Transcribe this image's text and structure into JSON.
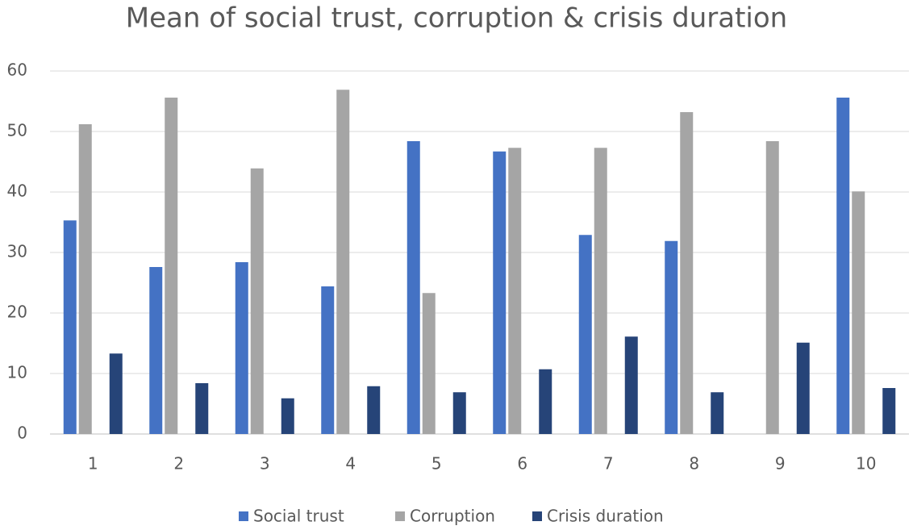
{
  "chart_data": {
    "type": "bar",
    "title": "Mean of social trust, corruption & crisis duration",
    "categories": [
      "1",
      "2",
      "3",
      "4",
      "5",
      "6",
      "7",
      "8",
      "9",
      "10"
    ],
    "series": [
      {
        "name": "Social trust",
        "color": "#4472c4",
        "values": [
          35.3,
          27.6,
          28.4,
          24.4,
          48.4,
          46.7,
          32.9,
          31.9,
          null,
          55.6
        ]
      },
      {
        "name": "Corruption",
        "color": "#a5a5a5",
        "values": [
          51.2,
          55.6,
          43.9,
          56.9,
          23.3,
          47.3,
          47.3,
          53.2,
          48.4,
          40.1
        ]
      },
      {
        "name": "Crisis duration",
        "color": "#264478",
        "values": [
          13.3,
          8.4,
          5.9,
          7.9,
          6.9,
          10.7,
          16.1,
          6.9,
          15.1,
          7.6
        ]
      }
    ],
    "ylim": [
      0,
      60
    ],
    "yticks": [
      0,
      10,
      20,
      30,
      40,
      50,
      60
    ],
    "grid": true,
    "legend": "bottom"
  }
}
